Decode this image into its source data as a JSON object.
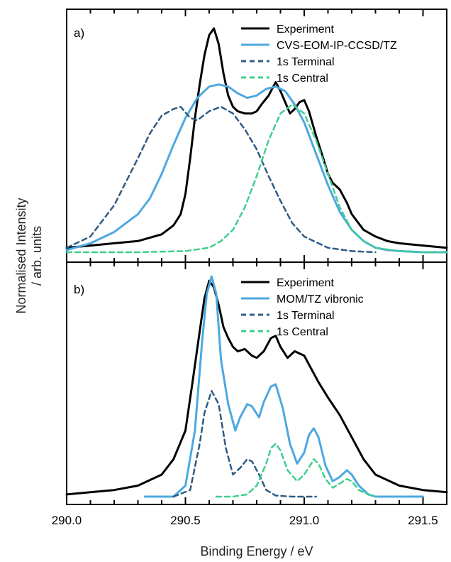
{
  "chart_data": [
    {
      "type": "line",
      "panel_label": "a)",
      "xlim": [
        290.0,
        291.6
      ],
      "ylim": [
        0,
        1.0
      ],
      "grid": false,
      "legend_position": "top-right",
      "series": [
        {
          "name": "Experiment",
          "style": "solid",
          "color": "#000000",
          "x": [
            290.0,
            290.1,
            290.2,
            290.3,
            290.4,
            290.45,
            290.48,
            290.5,
            290.52,
            290.54,
            290.56,
            290.58,
            290.6,
            290.62,
            290.64,
            290.66,
            290.68,
            290.7,
            290.72,
            290.75,
            290.78,
            290.8,
            290.82,
            290.85,
            290.87,
            290.88,
            290.9,
            290.92,
            290.94,
            290.96,
            290.98,
            291.0,
            291.02,
            291.05,
            291.08,
            291.1,
            291.12,
            291.15,
            291.18,
            291.2,
            291.25,
            291.3,
            291.35,
            291.4,
            291.5,
            291.6
          ],
          "y": [
            0.02,
            0.03,
            0.04,
            0.05,
            0.08,
            0.12,
            0.17,
            0.26,
            0.42,
            0.6,
            0.75,
            0.88,
            0.97,
            1.0,
            0.93,
            0.8,
            0.7,
            0.65,
            0.63,
            0.62,
            0.62,
            0.63,
            0.66,
            0.7,
            0.74,
            0.76,
            0.72,
            0.67,
            0.62,
            0.64,
            0.67,
            0.68,
            0.63,
            0.52,
            0.42,
            0.35,
            0.31,
            0.28,
            0.22,
            0.17,
            0.1,
            0.07,
            0.05,
            0.04,
            0.03,
            0.02
          ]
        },
        {
          "name": "CVS-EOM-IP-CCSD/TZ",
          "style": "solid",
          "color": "#4ea8e0",
          "x": [
            290.0,
            290.1,
            290.2,
            290.3,
            290.35,
            290.4,
            290.45,
            290.5,
            290.55,
            290.6,
            290.64,
            290.68,
            290.72,
            290.76,
            290.8,
            290.84,
            290.88,
            290.92,
            290.96,
            291.0,
            291.05,
            291.1,
            291.15,
            291.2,
            291.25,
            291.3,
            291.35,
            291.4,
            291.5,
            291.6
          ],
          "y": [
            0.01,
            0.04,
            0.09,
            0.17,
            0.24,
            0.35,
            0.48,
            0.6,
            0.69,
            0.74,
            0.75,
            0.74,
            0.71,
            0.69,
            0.7,
            0.73,
            0.74,
            0.72,
            0.66,
            0.58,
            0.44,
            0.3,
            0.18,
            0.1,
            0.05,
            0.02,
            0.01,
            0.005,
            0.0,
            0.0
          ]
        },
        {
          "name": "1s Terminal",
          "style": "dashed",
          "color": "#2e5c86",
          "x": [
            290.0,
            290.1,
            290.2,
            290.3,
            290.35,
            290.4,
            290.45,
            290.48,
            290.52,
            290.55,
            290.6,
            290.65,
            290.7,
            290.75,
            290.8,
            290.85,
            290.9,
            290.95,
            291.0,
            291.1,
            291.2,
            291.3
          ],
          "y": [
            0.02,
            0.07,
            0.21,
            0.42,
            0.53,
            0.61,
            0.64,
            0.65,
            0.6,
            0.59,
            0.63,
            0.65,
            0.62,
            0.55,
            0.46,
            0.34,
            0.23,
            0.13,
            0.07,
            0.02,
            0.005,
            0.0
          ]
        },
        {
          "name": "1s Central",
          "style": "dashed",
          "color": "#3ecf8e",
          "x": [
            290.0,
            290.3,
            290.5,
            290.6,
            290.65,
            290.7,
            290.75,
            290.8,
            290.85,
            290.9,
            290.95,
            291.0,
            291.05,
            291.1,
            291.15,
            291.2,
            291.25,
            291.3,
            291.4,
            291.5,
            291.6
          ],
          "y": [
            0.0,
            0.0,
            0.005,
            0.02,
            0.05,
            0.1,
            0.2,
            0.34,
            0.5,
            0.62,
            0.66,
            0.62,
            0.5,
            0.35,
            0.2,
            0.1,
            0.05,
            0.02,
            0.005,
            0.0,
            0.0
          ]
        }
      ]
    },
    {
      "type": "line",
      "panel_label": "b)",
      "xlabel": "Binding Energy / eV",
      "xlim": [
        290.0,
        291.6
      ],
      "ylim": [
        0,
        1.0
      ],
      "xticks": [
        "290.0",
        "290.5",
        "291.0",
        "291.5"
      ],
      "grid": false,
      "legend_position": "top-right",
      "series": [
        {
          "name": "Experiment",
          "style": "solid",
          "color": "#000000",
          "x": [
            290.0,
            290.1,
            290.2,
            290.3,
            290.4,
            290.45,
            290.5,
            290.53,
            290.56,
            290.58,
            290.6,
            290.62,
            290.64,
            290.66,
            290.68,
            290.7,
            290.72,
            290.75,
            290.78,
            290.8,
            290.83,
            290.86,
            290.88,
            290.9,
            290.93,
            290.96,
            291.0,
            291.03,
            291.06,
            291.1,
            291.15,
            291.2,
            291.25,
            291.3,
            291.4,
            291.5,
            291.6
          ],
          "y": [
            0.01,
            0.02,
            0.03,
            0.05,
            0.1,
            0.17,
            0.3,
            0.52,
            0.75,
            0.9,
            0.98,
            0.95,
            0.87,
            0.77,
            0.72,
            0.68,
            0.66,
            0.67,
            0.64,
            0.63,
            0.66,
            0.72,
            0.73,
            0.68,
            0.63,
            0.66,
            0.64,
            0.58,
            0.52,
            0.45,
            0.37,
            0.27,
            0.17,
            0.1,
            0.05,
            0.03,
            0.02
          ]
        },
        {
          "name": "MOM/TZ vibronic",
          "style": "solid",
          "color": "#4ea8e0",
          "x": [
            290.33,
            290.45,
            290.5,
            290.54,
            290.57,
            290.59,
            290.61,
            290.63,
            290.65,
            290.68,
            290.71,
            290.73,
            290.76,
            290.78,
            290.81,
            290.83,
            290.86,
            290.88,
            290.91,
            290.94,
            290.97,
            291.0,
            291.02,
            291.04,
            291.06,
            291.09,
            291.12,
            291.15,
            291.18,
            291.2,
            291.23,
            291.27,
            291.3,
            291.4,
            291.5
          ],
          "y": [
            0.0,
            0.0,
            0.05,
            0.3,
            0.7,
            0.92,
            1.0,
            0.92,
            0.62,
            0.42,
            0.3,
            0.36,
            0.42,
            0.41,
            0.36,
            0.43,
            0.5,
            0.51,
            0.4,
            0.24,
            0.15,
            0.2,
            0.28,
            0.31,
            0.27,
            0.14,
            0.07,
            0.09,
            0.12,
            0.1,
            0.05,
            0.01,
            0.0,
            0.0,
            0.0
          ]
        },
        {
          "name": "1s Terminal",
          "style": "dashed",
          "color": "#2e5c86",
          "x": [
            290.45,
            290.52,
            290.56,
            290.58,
            290.61,
            290.64,
            290.67,
            290.7,
            290.73,
            290.76,
            290.78,
            290.81,
            290.84,
            290.88,
            290.95,
            291.05
          ],
          "y": [
            0.0,
            0.03,
            0.24,
            0.38,
            0.48,
            0.42,
            0.22,
            0.1,
            0.13,
            0.17,
            0.16,
            0.1,
            0.03,
            0.005,
            0.0,
            0.0
          ]
        },
        {
          "name": "1s Central",
          "style": "dashed",
          "color": "#3ecf8e",
          "x": [
            290.63,
            290.7,
            290.76,
            290.8,
            290.84,
            290.86,
            290.88,
            290.9,
            290.93,
            290.97,
            291.0,
            291.03,
            291.04,
            291.06,
            291.09,
            291.12,
            291.15,
            291.18,
            291.2,
            291.23,
            291.27,
            291.3
          ],
          "y": [
            0.0,
            0.0,
            0.01,
            0.05,
            0.15,
            0.22,
            0.24,
            0.21,
            0.12,
            0.07,
            0.1,
            0.15,
            0.17,
            0.15,
            0.08,
            0.04,
            0.06,
            0.08,
            0.07,
            0.03,
            0.01,
            0.0
          ]
        }
      ]
    }
  ],
  "shared": {
    "ylabel_line1": "Normalised Intensity",
    "ylabel_line2": "/ arb. units"
  }
}
